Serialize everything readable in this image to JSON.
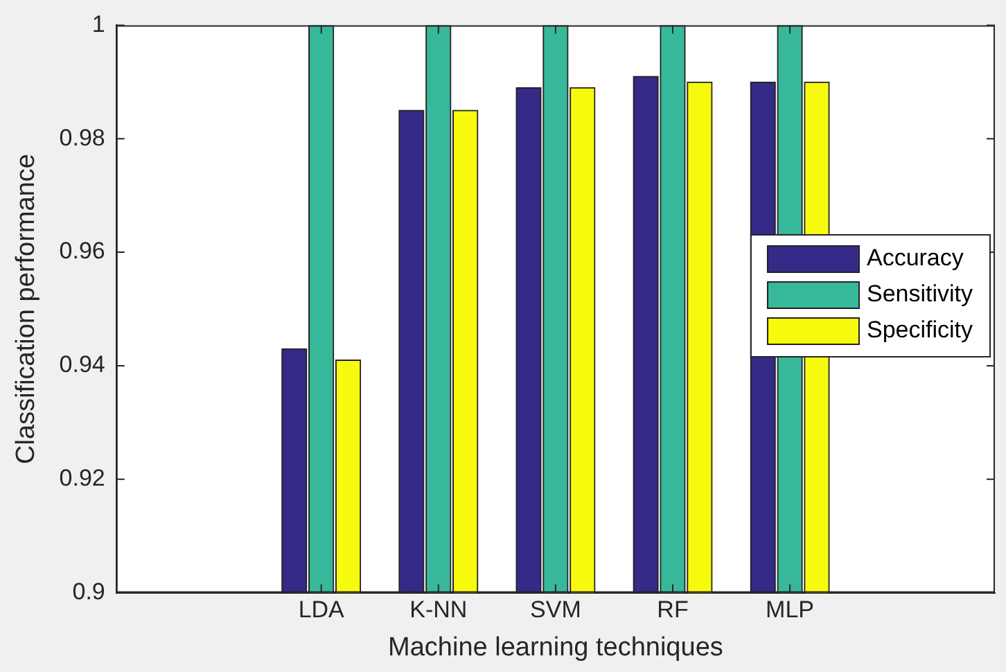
{
  "chart_data": {
    "type": "bar",
    "xlabel": "Machine learning techniques",
    "ylabel": "Classification performance",
    "categories": [
      "LDA",
      "K-NN",
      "SVM",
      "RF",
      "MLP"
    ],
    "series": [
      {
        "name": "Accuracy",
        "color": "#352a87",
        "values": [
          0.943,
          0.985,
          0.989,
          0.991,
          0.99
        ]
      },
      {
        "name": "Sensitivity",
        "color": "#38b89a",
        "values": [
          1,
          1,
          1,
          1,
          1
        ]
      },
      {
        "name": "Specificity",
        "color": "#f8fa0d",
        "values": [
          0.941,
          0.985,
          0.989,
          0.99,
          0.99
        ]
      }
    ],
    "ylim": [
      0.9,
      1
    ],
    "yticks": [
      0.9,
      0.92,
      0.94,
      0.96,
      0.98,
      1
    ],
    "grid": false,
    "legend": "right"
  }
}
